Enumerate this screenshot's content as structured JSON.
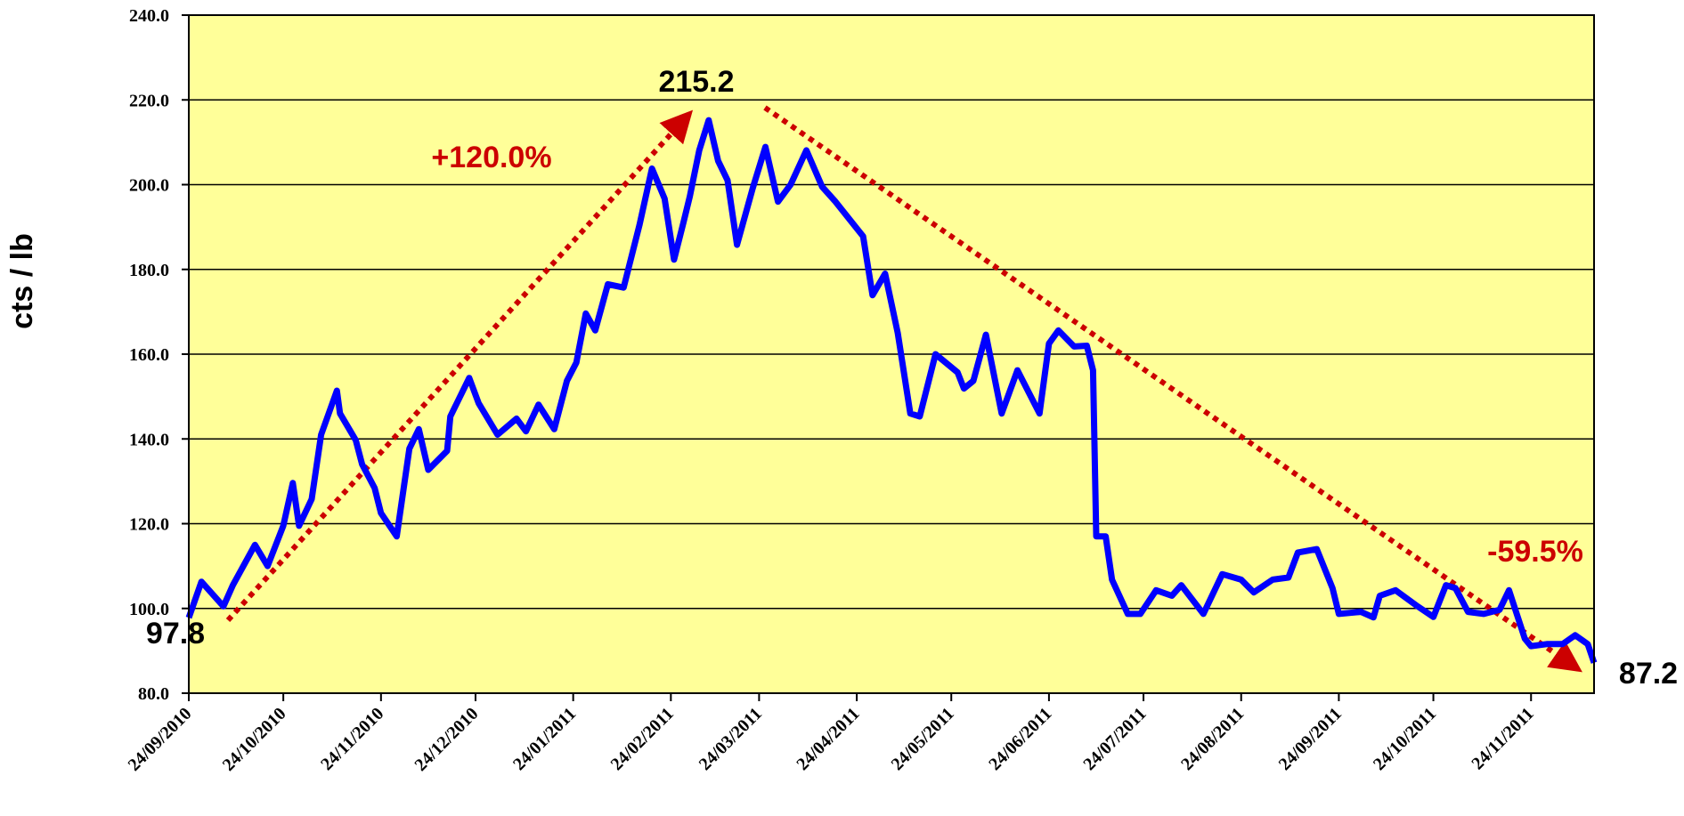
{
  "chart_data": {
    "type": "line",
    "y_label": "cts / lb",
    "x": [
      "24/09/2010",
      "28/09/2010",
      "05/10/2010",
      "08/10/2010",
      "15/10/2010",
      "19/10/2010",
      "24/10/2010",
      "27/10/2010",
      "29/10/2010",
      "02/11/2010",
      "05/11/2010",
      "10/11/2010",
      "11/11/2010",
      "16/11/2010",
      "18/11/2010",
      "22/11/2010",
      "24/11/2010",
      "29/11/2010",
      "03/12/2010",
      "06/12/2010",
      "09/12/2010",
      "15/12/2010",
      "16/12/2010",
      "22/12/2010",
      "25/12/2010",
      "31/12/2010",
      "06/01/2011",
      "09/01/2011",
      "13/01/2011",
      "18/01/2011",
      "22/01/2011",
      "25/01/2011",
      "28/01/2011",
      "31/01/2011",
      "04/02/2011",
      "09/02/2011",
      "14/02/2011",
      "18/02/2011",
      "22/02/2011",
      "25/02/2011",
      "28/02/2011",
      "02/03/2011",
      "05/03/2011",
      "08/03/2011",
      "11/03/2011",
      "14/03/2011",
      "17/03/2011",
      "22/03/2011",
      "26/03/2011",
      "30/03/2011",
      "03/04/2011",
      "08/04/2011",
      "13/04/2011",
      "17/04/2011",
      "26/04/2011",
      "29/04/2011",
      "03/05/2011",
      "07/05/2011",
      "11/05/2011",
      "14/05/2011",
      "19/05/2011",
      "26/05/2011",
      "28/05/2011",
      "31/05/2011",
      "04/06/2011",
      "09/06/2011",
      "14/06/2011",
      "21/06/2011",
      "24/06/2011",
      "27/06/2011",
      "02/07/2011",
      "06/07/2011",
      "08/07/2011",
      "09/07/2011",
      "12/07/2011",
      "14/07/2011",
      "19/07/2011",
      "23/07/2011",
      "28/07/2011",
      "02/08/2011",
      "05/08/2011",
      "12/08/2011",
      "18/08/2011",
      "24/08/2011",
      "28/08/2011",
      "03/09/2011",
      "08/09/2011",
      "11/09/2011",
      "17/09/2011",
      "22/09/2011",
      "24/09/2011",
      "01/10/2011",
      "05/10/2011",
      "07/10/2011",
      "12/10/2011",
      "19/10/2011",
      "24/10/2011",
      "28/10/2011",
      "31/10/2011",
      "04/11/2011",
      "09/11/2011",
      "14/11/2011",
      "17/11/2011",
      "22/11/2011",
      "24/11/2011",
      "29/11/2011",
      "04/12/2011",
      "08/12/2011",
      "12/12/2011",
      "14/12/2011"
    ],
    "series": [
      {
        "color": "#0000ff",
        "values": [
          97.8,
          106.3,
          100.5,
          105.5,
          115,
          110,
          119.5,
          129.6,
          119.5,
          125.8,
          141,
          151.4,
          146,
          139.7,
          134,
          128.4,
          122.5,
          117,
          137.7,
          142.3,
          132.7,
          137.2,
          145.3,
          154.4,
          148.4,
          141,
          144.8,
          141.8,
          148.1,
          142.3,
          153.7,
          158,
          169.6,
          165.6,
          176.5,
          175.7,
          190.4,
          203.8,
          196.7,
          182.3,
          191.1,
          197.2,
          208.1,
          215.2,
          205.6,
          201,
          185.8,
          199.2,
          208.9,
          196,
          200,
          208.1,
          199.5,
          196.2,
          187.8,
          173.9,
          179,
          165,
          146,
          145.3,
          160,
          155.7,
          151.9,
          153.7,
          164.6,
          146,
          156.2,
          146,
          162.5,
          165.6,
          161.8,
          162,
          156.2,
          117,
          117,
          106.8,
          98.7,
          98.7,
          104.3,
          103,
          105.5,
          98.7,
          108.1,
          106.8,
          103.8,
          106.8,
          107.3,
          113.2,
          114,
          104.8,
          98.7,
          99.2,
          97.9,
          103,
          104.3,
          100.5,
          98,
          105.5,
          104.8,
          99.2,
          98.7,
          99.7,
          104.3,
          92.9,
          91.1,
          91.6,
          91.6,
          93.7,
          91.6,
          87.2
        ]
      }
    ],
    "xlim": [
      "24/09/2010",
      "14/12/2011"
    ],
    "xticks": [
      "24/09/2010",
      "24/10/2010",
      "24/11/2010",
      "24/12/2010",
      "24/01/2011",
      "24/02/2011",
      "24/03/2011",
      "24/04/2011",
      "24/05/2011",
      "24/06/2011",
      "24/07/2011",
      "24/08/2011",
      "24/09/2011",
      "24/10/2011",
      "24/11/2011"
    ],
    "ylim": [
      80,
      240
    ],
    "yticks": [
      {
        "value": 80,
        "label": "80.0"
      },
      {
        "value": 100,
        "label": "100.0"
      },
      {
        "value": 120,
        "label": "120.0"
      },
      {
        "value": 140,
        "label": "140.0"
      },
      {
        "value": 160,
        "label": "160.0"
      },
      {
        "value": 180,
        "label": "180.0"
      },
      {
        "value": 200,
        "label": "200.0"
      },
      {
        "value": 220,
        "label": "220.0"
      },
      {
        "value": 240,
        "label": "240.0"
      }
    ],
    "grid": true,
    "annotations": [
      "97.8",
      "215.2",
      "87.2",
      "+120.0%",
      "-59.5%"
    ]
  }
}
